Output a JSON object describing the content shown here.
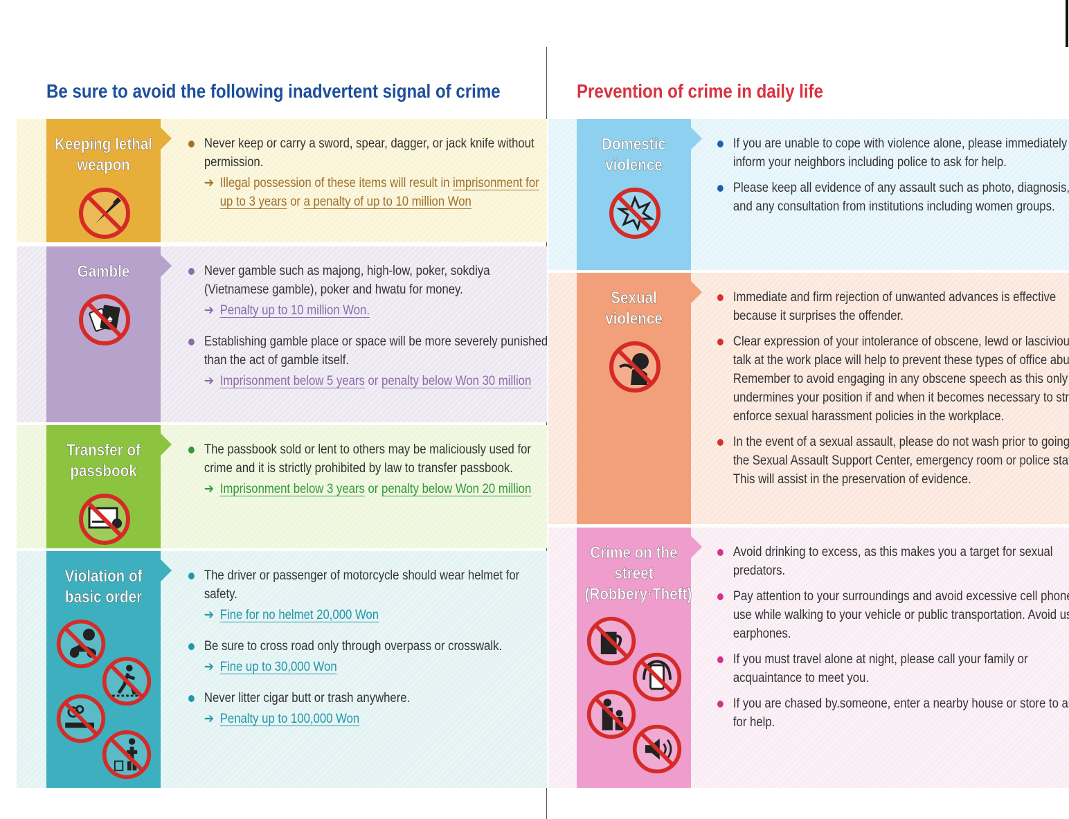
{
  "left": {
    "title": "Be sure to avoid the following inadvertent signal of crime",
    "title_color": "#1d4f9c",
    "sections": [
      {
        "label": [
          "Keeping lethal",
          "weapon"
        ],
        "icon": "no-knife-icon",
        "label_color": "#e8ae3a",
        "bg_color": "#faf4d6",
        "accent": "#a0702a",
        "items": [
          {
            "text": "Never keep or carry a sword, spear, dagger, or jack knife without permission.",
            "penalty": [
              {
                "t": "Illegal possession of these items will result in ",
                "u": false
              },
              {
                "t": "imprisonment for up to 3 years",
                "u": true
              },
              {
                "t": " or ",
                "u": false
              },
              {
                "t": "a penalty of up to 10 million Won",
                "u": true
              }
            ]
          }
        ]
      },
      {
        "label": [
          "Gamble"
        ],
        "icon": "no-gambling-cards-icon",
        "label_color": "#b7a2cc",
        "bg_color": "#ece8f1",
        "accent": "#8d6aaa",
        "items": [
          {
            "text": "Never gamble such as majong, high-low, poker, sokdiya (Vietnamese gamble), poker and hwatu for money.",
            "penalty": [
              {
                "t": "Penalty up to 10 million Won.",
                "u": true
              }
            ]
          },
          {
            "text": "Establishing gamble place or space will be more severely punished than the act of gamble itself.",
            "penalty": [
              {
                "t": "Imprisonment below 5 years",
                "u": true
              },
              {
                "t": " or ",
                "u": false
              },
              {
                "t": "penalty below Won 30 million",
                "u": true
              }
            ]
          }
        ]
      },
      {
        "label": [
          "Transfer of",
          "passbook"
        ],
        "icon": "no-passbook-transfer-icon",
        "label_color": "#8cc43f",
        "bg_color": "#eef6db",
        "accent": "#2f9a3b",
        "items": [
          {
            "text": "The passbook sold or lent to others may be maliciously used for crime and it is strictly prohibited by law to transfer passbook.",
            "penalty": [
              {
                "t": "Imprisonment below 3 years",
                "u": true
              },
              {
                "t": " or ",
                "u": false
              },
              {
                "t": "penalty below Won 20 million",
                "u": true
              }
            ]
          }
        ]
      },
      {
        "label": [
          "Violation of",
          "basic order"
        ],
        "icon": "no-basic-order-violations-icons",
        "label_color": "#3eafbe",
        "bg_color": "#e3f2f2",
        "accent": "#1f98a8",
        "items": [
          {
            "text": "The driver or passenger of motorcycle should wear helmet for safety.",
            "penalty": [
              {
                "t": "Fine for no helmet 20,000 Won",
                "u": true
              }
            ]
          },
          {
            "text": "Be sure to cross road only through overpass or crosswalk.",
            "penalty": [
              {
                "t": "Fine up to 30,000 Won",
                "u": true
              }
            ]
          },
          {
            "text": "Never litter cigar butt or trash anywhere.",
            "penalty": [
              {
                "t": "Penalty up to 100,000 Won",
                "u": true
              }
            ]
          }
        ]
      }
    ]
  },
  "right": {
    "title": "Prevention of crime in daily life",
    "title_color": "#d8323f",
    "sections": [
      {
        "label": [
          "Domestic",
          "violence"
        ],
        "icon": "no-domestic-violence-icon",
        "label_color": "#8ed0f0",
        "bg_color": "#e4f4fb",
        "accent": "#1f5fae",
        "items": [
          {
            "text": "If you are unable to cope with violence alone, please immediately inform your neighbors including police to ask for help."
          },
          {
            "text": "Please keep all evidence of any assault such as photo, diagnosis, etc and any consultation from institutions including women groups."
          }
        ]
      },
      {
        "label": [
          "Sexual",
          "violence"
        ],
        "icon": "no-sexual-violence-icon",
        "label_color": "#f2a07a",
        "bg_color": "#fbe7dc",
        "accent": "#d6312c",
        "items": [
          {
            "text": "Immediate and firm rejection of unwanted advances is effective because it surprises the offender."
          },
          {
            "text": "Clear expression of your intolerance of obscene, lewd or lascivious talk at the work place will help to prevent these types of office abuses. Remember to avoid engaging in any obscene speech as this only undermines your position if and when it becomes necessary to strictly enforce sexual harassment policies in the workplace."
          },
          {
            "text": "In the event of a sexual assault, please do not wash prior to going to the Sexual Assault Support Center, emergency room or police station. This will assist in the preservation of evidence."
          }
        ]
      },
      {
        "label": [
          "Crime on the",
          "street",
          "(Robbery·Theft)"
        ],
        "icon": "no-street-crime-risks-icons",
        "label_color": "#ee9dcc",
        "bg_color": "#f9edf3",
        "accent": "#d6308a",
        "items": [
          {
            "text": "Avoid drinking to excess, as this makes you a target for sexual predators."
          },
          {
            "text": "Pay attention to your surroundings and avoid excessive cell phone use while walking to your vehicle or public transportation. Avoid using earphones."
          },
          {
            "text": "If you must travel alone at night, please call your family or acquaintance to meet you."
          },
          {
            "text": "If you are chased by.someone, enter a nearby house or store to ask for help."
          }
        ]
      }
    ]
  }
}
